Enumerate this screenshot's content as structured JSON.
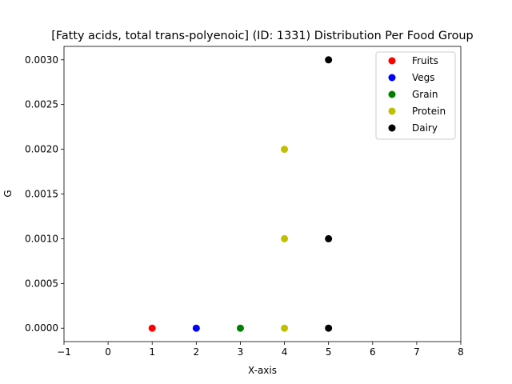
{
  "chart_data": {
    "type": "scatter",
    "title": "[Fatty acids, total trans-polyenoic] (ID: 1331) Distribution Per Food Group",
    "xlabel": "X-axis",
    "ylabel": "G",
    "xlim": [
      -1,
      8
    ],
    "ylim": [
      -0.00015,
      0.00315
    ],
    "x_ticks": [
      -1,
      0,
      1,
      2,
      3,
      4,
      5,
      6,
      7,
      8
    ],
    "x_tick_labels": [
      "−1",
      "0",
      "1",
      "2",
      "3",
      "4",
      "5",
      "6",
      "7",
      "8"
    ],
    "y_ticks": [
      0,
      0.0005,
      0.001,
      0.0015,
      0.002,
      0.0025,
      0.003
    ],
    "y_tick_labels": [
      "0.0000",
      "0.0005",
      "0.0010",
      "0.0015",
      "0.0020",
      "0.0025",
      "0.0030"
    ],
    "grid": false,
    "legend_position": "top-right",
    "series": [
      {
        "name": "Fruits",
        "color": "#ff0000",
        "points": [
          [
            1,
            0
          ]
        ]
      },
      {
        "name": "Vegs",
        "color": "#0000ff",
        "points": [
          [
            2,
            0
          ]
        ]
      },
      {
        "name": "Grain",
        "color": "#008000",
        "points": [
          [
            3,
            0
          ]
        ]
      },
      {
        "name": "Protein",
        "color": "#bfbf00",
        "points": [
          [
            4,
            0
          ],
          [
            4,
            0.001
          ],
          [
            4,
            0.002
          ]
        ]
      },
      {
        "name": "Dairy",
        "color": "#000000",
        "points": [
          [
            5,
            0
          ],
          [
            5,
            0.001
          ],
          [
            5,
            0.003
          ]
        ]
      }
    ]
  }
}
